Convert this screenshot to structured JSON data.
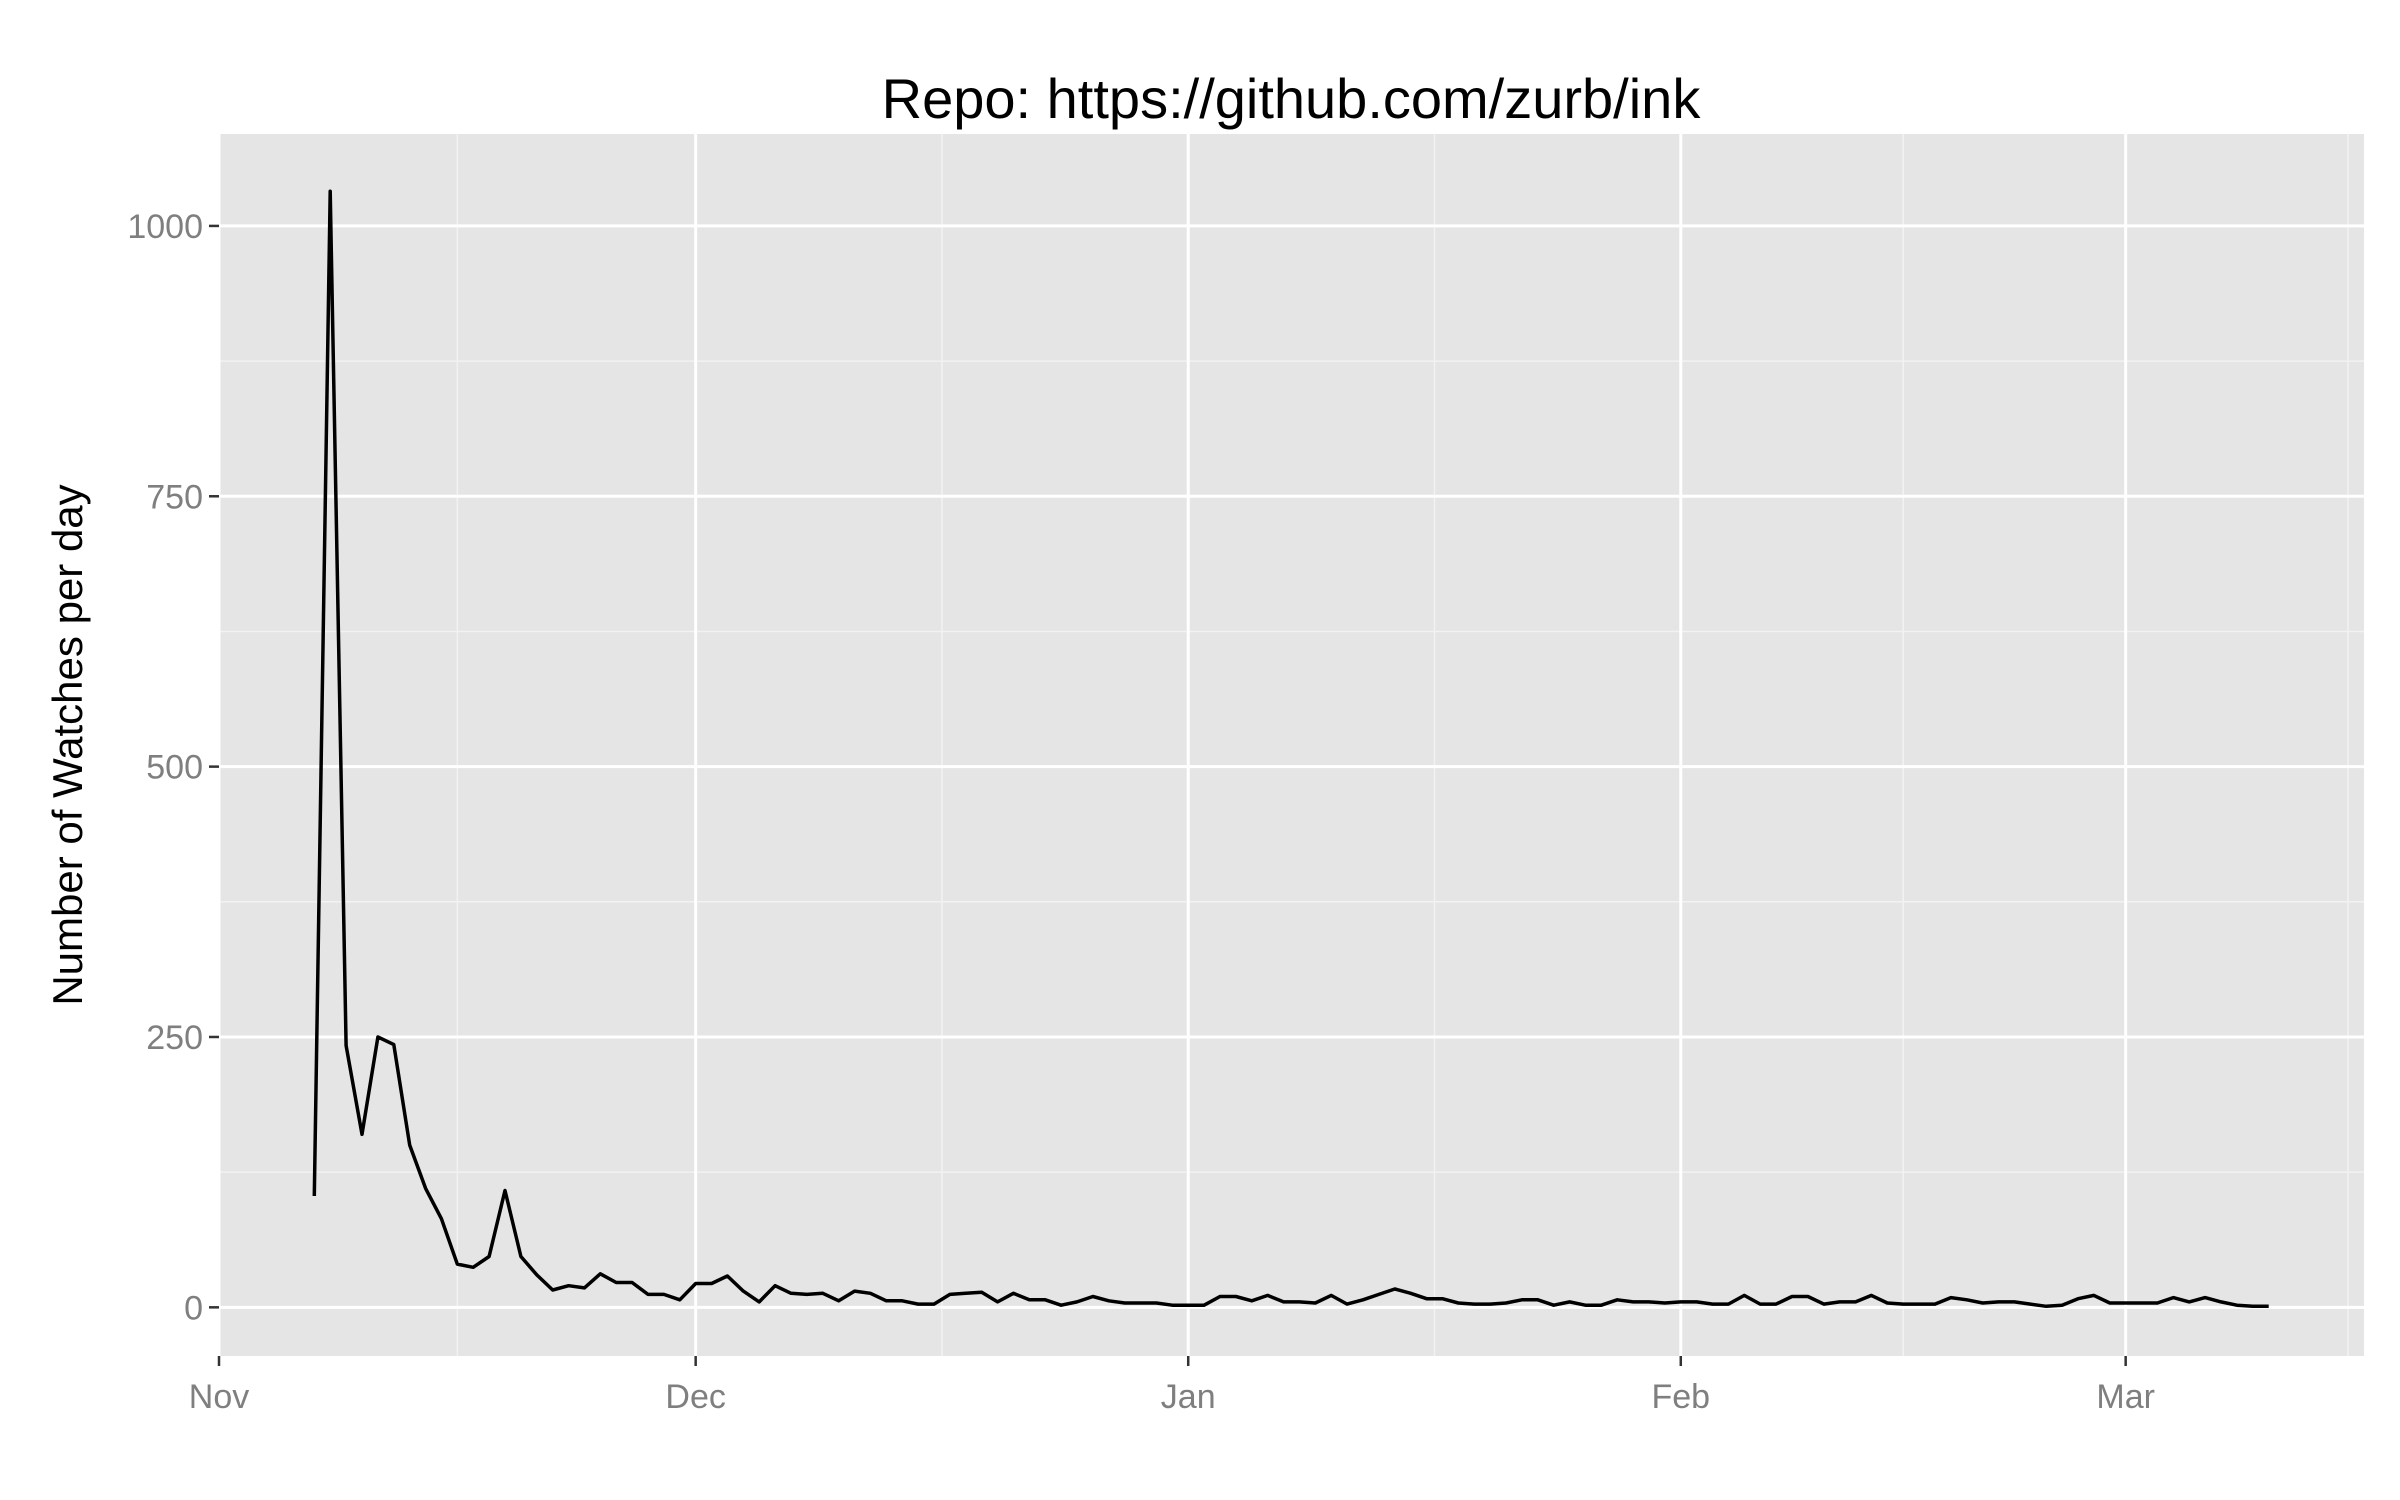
{
  "chart_data": {
    "type": "line",
    "title": "Repo: https://github.com/zurb/ink",
    "xlabel": "",
    "ylabel": "Number of Watches per day",
    "x_ticks": [
      {
        "label": "Nov",
        "date": "2012-11-01"
      },
      {
        "label": "Dec",
        "date": "2012-12-01"
      },
      {
        "label": "Jan",
        "date": "2013-01-01"
      },
      {
        "label": "Feb",
        "date": "2013-02-01"
      },
      {
        "label": "Mar",
        "date": "2013-03-01"
      }
    ],
    "xlim": [
      "2012-11-01",
      "2013-03-16"
    ],
    "y_ticks": [
      0,
      250,
      500,
      750,
      1000
    ],
    "ylim": [
      -45,
      1085
    ],
    "grid": true,
    "legend": "none",
    "colors": {
      "panel": "#e5e5e5",
      "grid": "#ffffff",
      "line": "#000000",
      "tick_label": "#7f7f7f"
    },
    "series": [
      {
        "x": [
          "2012-11-07",
          "2012-11-08",
          "2012-11-09",
          "2012-11-10",
          "2012-11-11",
          "2012-11-12",
          "2012-11-13",
          "2012-11-14",
          "2012-11-15",
          "2012-11-16",
          "2012-11-17",
          "2012-11-18",
          "2012-11-19",
          "2012-11-20",
          "2012-11-21",
          "2012-11-22",
          "2012-11-23",
          "2012-11-24",
          "2012-11-25",
          "2012-11-26",
          "2012-11-27",
          "2012-11-28",
          "2012-11-29",
          "2012-11-30",
          "2012-12-01",
          "2012-12-02",
          "2012-12-03",
          "2012-12-04",
          "2012-12-05",
          "2012-12-06",
          "2012-12-07",
          "2012-12-08",
          "2012-12-09",
          "2012-12-10",
          "2012-12-11",
          "2012-12-12",
          "2012-12-13",
          "2012-12-14",
          "2012-12-15",
          "2012-12-16",
          "2012-12-17",
          "2012-12-18",
          "2012-12-19",
          "2012-12-20",
          "2012-12-21",
          "2012-12-22",
          "2012-12-23",
          "2012-12-24",
          "2012-12-25",
          "2012-12-26",
          "2012-12-27",
          "2012-12-28",
          "2012-12-29",
          "2012-12-30",
          "2012-12-31",
          "2013-01-01",
          "2013-01-02",
          "2013-01-03",
          "2013-01-04",
          "2013-01-05",
          "2013-01-06",
          "2013-01-07",
          "2013-01-08",
          "2013-01-09",
          "2013-01-10",
          "2013-01-11",
          "2013-01-12",
          "2013-01-13",
          "2013-01-14",
          "2013-01-15",
          "2013-01-16",
          "2013-01-17",
          "2013-01-18",
          "2013-01-19",
          "2013-01-20",
          "2013-01-21",
          "2013-01-22",
          "2013-01-23",
          "2013-01-24",
          "2013-01-25",
          "2013-01-26",
          "2013-01-27",
          "2013-01-28",
          "2013-01-29",
          "2013-01-30",
          "2013-01-31",
          "2013-02-01",
          "2013-02-02",
          "2013-02-03",
          "2013-02-04",
          "2013-02-05",
          "2013-02-06",
          "2013-02-07",
          "2013-02-08",
          "2013-02-09",
          "2013-02-10",
          "2013-02-11",
          "2013-02-12",
          "2013-02-13",
          "2013-02-14",
          "2013-02-15",
          "2013-02-16",
          "2013-02-17",
          "2013-02-18",
          "2013-02-19",
          "2013-02-20",
          "2013-02-21",
          "2013-02-22",
          "2013-02-23",
          "2013-02-24",
          "2013-02-25",
          "2013-02-26",
          "2013-02-27",
          "2013-02-28",
          "2013-03-01",
          "2013-03-02",
          "2013-03-03",
          "2013-03-04",
          "2013-03-05",
          "2013-03-06",
          "2013-03-07",
          "2013-03-08",
          "2013-03-09",
          "2013-03-10"
        ],
        "y": [
          103,
          1032,
          242,
          160,
          250,
          243,
          150,
          110,
          82,
          40,
          37,
          47,
          108,
          47,
          30,
          16,
          20,
          18,
          31,
          23,
          23,
          12,
          12,
          7,
          22,
          22,
          29,
          15,
          5,
          20,
          13,
          12,
          13,
          6,
          15,
          13,
          6,
          6,
          3,
          3,
          12,
          13,
          14,
          5,
          13,
          7,
          7,
          2,
          5,
          10,
          6,
          4,
          4,
          4,
          2,
          2,
          2,
          10,
          10,
          6,
          11,
          5,
          5,
          4,
          11,
          3,
          7,
          12,
          17,
          13,
          8,
          8,
          4,
          3,
          3,
          4,
          7,
          7,
          2,
          5,
          2,
          2,
          7,
          5,
          5,
          4,
          5,
          5,
          3,
          3,
          11,
          3,
          3,
          10,
          10,
          3,
          5,
          5,
          11,
          4,
          3,
          3,
          3,
          9,
          7,
          4,
          5,
          5,
          3,
          1,
          2,
          8,
          11,
          4,
          4,
          4,
          4,
          9,
          5,
          9,
          5,
          2,
          1,
          1
        ]
      }
    ]
  }
}
